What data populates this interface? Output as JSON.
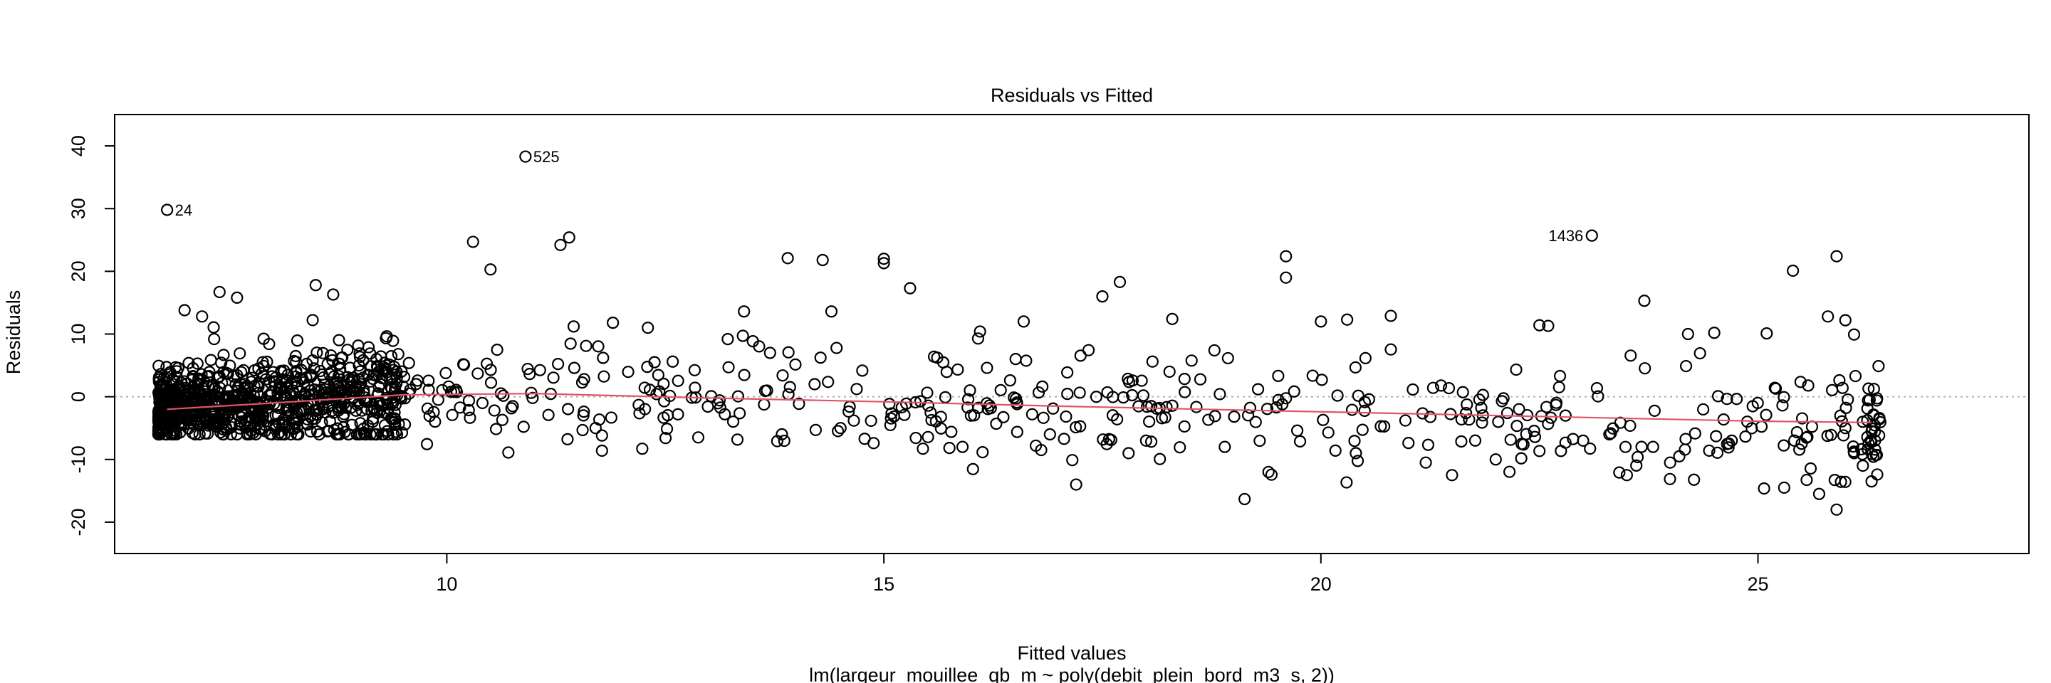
{
  "chart_data": {
    "type": "scatter",
    "title": "Residuals vs Fitted",
    "xlabel": "Fitted values",
    "subtitle": "lm(largeur_mouillee_qb_m ~ poly(debit_plein_bord_m3_s, 2))",
    "ylabel": "Residuals",
    "xlim": [
      6.2,
      28.1
    ],
    "ylim": [
      -25.0,
      45.0
    ],
    "xticks": [
      10,
      15,
      20,
      25
    ],
    "yticks": [
      -20,
      -10,
      0,
      10,
      20,
      30,
      40
    ],
    "zero_line": 0,
    "annotations": [
      {
        "label": "24",
        "x": 6.8,
        "y": 29.8
      },
      {
        "label": "525",
        "x": 10.9,
        "y": 38.3
      },
      {
        "label": "1436",
        "x": 23.1,
        "y": 25.7
      }
    ],
    "smoother": {
      "x": [
        6.8,
        8.0,
        9.5,
        11.0,
        13.0,
        15.0,
        17.0,
        19.0,
        21.0,
        23.0,
        25.0,
        26.3
      ],
      "y": [
        -2.0,
        -1.0,
        0.3,
        0.5,
        -0.2,
        -0.8,
        -1.5,
        -2.1,
        -2.7,
        -3.3,
        -3.9,
        -4.1
      ]
    },
    "points": {
      "x": [
        10.3,
        10.5,
        11.3,
        11.4,
        13.9,
        14.3,
        14.4,
        15.0,
        15.0,
        15.3,
        17.5,
        17.7,
        19.6,
        19.6,
        20.3,
        22.6,
        23.7,
        25.4,
        25.9,
        8.5,
        8.7,
        7.4,
        7.6,
        7.0,
        7.2,
        11.9,
        12.3,
        13.4,
        16.1,
        16.6,
        18.3,
        20.0,
        20.8,
        22.5,
        24.2,
        24.5,
        25.1,
        25.8,
        26.0,
        17.2,
        17.8,
        19.4,
        21.5,
        22.0,
        23.5,
        24.1,
        25.3,
        25.7,
        25.9,
        26.3,
        26.2,
        26.1,
        15.9,
        16.8,
        16.9,
        18.0,
        18.9,
        20.4,
        21.2,
        23.0,
        23.3,
        23.8,
        24.7,
        25.5,
        26.0,
        26.3,
        26.2
      ],
      "y": [
        24.7,
        20.3,
        24.2,
        25.4,
        22.1,
        21.8,
        13.6,
        22.0,
        21.3,
        17.3,
        16.0,
        18.3,
        22.4,
        19.0,
        12.3,
        11.3,
        15.3,
        20.1,
        22.4,
        17.8,
        16.3,
        16.7,
        15.8,
        13.8,
        12.8,
        11.8,
        11.0,
        13.6,
        10.4,
        12.0,
        12.4,
        12.0,
        12.9,
        11.4,
        10.0,
        10.2,
        10.1,
        12.8,
        12.2,
        -14.0,
        -9.0,
        -12.0,
        -12.5,
        -10.0,
        -12.5,
        -9.5,
        -14.5,
        -15.5,
        -18.0,
        -13.5,
        -11.0,
        -9.0,
        -8.0,
        -8.5,
        -6.0,
        -7.0,
        -8.0,
        -9.0,
        -10.5,
        -7.0,
        -6.0,
        -8.0,
        -7.0,
        -7.5,
        -5.0,
        -5.5,
        -4.0
      ]
    },
    "dense_cluster": {
      "x_range": [
        6.7,
        9.5
      ],
      "y_range": [
        -6,
        10
      ],
      "n": 900
    },
    "medium_scatter": {
      "x_range": [
        9.5,
        26.4
      ],
      "n": 420
    }
  }
}
